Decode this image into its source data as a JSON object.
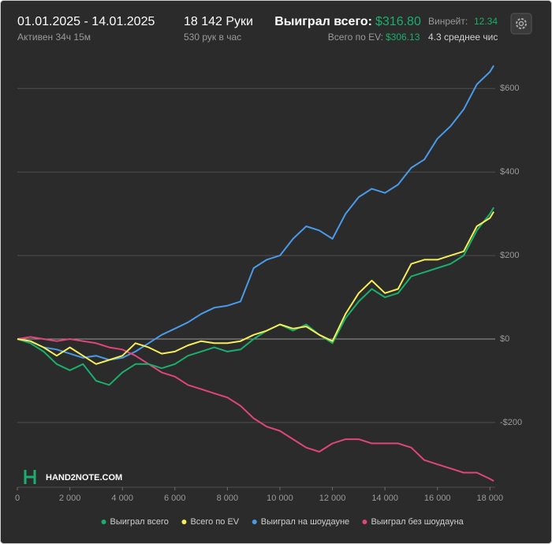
{
  "header": {
    "period": "01.01.2025 - 14.01.2025",
    "active": "Активен 34ч 15м",
    "hands": "18 142 Руки",
    "rate": "530 рук в час",
    "won_label": "Выиграл всего:",
    "won_value": "$316.80",
    "ev_label": "Всего по EV:",
    "ev_value": "$306.13",
    "winrate_label": "Винрейт:",
    "winrate_value": "12.34",
    "avg": "4.3 среднее чис"
  },
  "logo": "HAND2NOTE.COM",
  "chart_data": {
    "type": "line",
    "x": [
      0,
      500,
      1000,
      1500,
      2000,
      2500,
      3000,
      3500,
      4000,
      4500,
      5000,
      5500,
      6000,
      6500,
      7000,
      7500,
      8000,
      8500,
      9000,
      9500,
      10000,
      10500,
      11000,
      11500,
      12000,
      12500,
      13000,
      13500,
      14000,
      14500,
      15000,
      15500,
      16000,
      16500,
      17000,
      17500,
      18000,
      18142
    ],
    "series": [
      {
        "name": "Выиграл всего",
        "color": "#1aaf6c",
        "values": [
          0,
          -10,
          -30,
          -60,
          -75,
          -60,
          -100,
          -110,
          -80,
          -60,
          -60,
          -70,
          -60,
          -40,
          -30,
          -20,
          -30,
          -25,
          0,
          20,
          35,
          20,
          35,
          10,
          -10,
          50,
          90,
          120,
          100,
          110,
          150,
          160,
          170,
          180,
          200,
          260,
          300,
          315
        ]
      },
      {
        "name": "Всего по EV",
        "color": "#f5ee5a",
        "values": [
          0,
          -5,
          -20,
          -40,
          -20,
          -40,
          -60,
          -50,
          -40,
          -10,
          -20,
          -35,
          -30,
          -15,
          -5,
          -10,
          -10,
          -5,
          10,
          20,
          35,
          25,
          30,
          10,
          -5,
          60,
          110,
          140,
          110,
          120,
          180,
          190,
          190,
          200,
          210,
          270,
          290,
          305
        ]
      },
      {
        "name": "Выиграл на шоудауне",
        "color": "#4a9ae8",
        "values": [
          0,
          -5,
          -20,
          -25,
          -35,
          -45,
          -40,
          -50,
          -45,
          -30,
          -10,
          10,
          25,
          40,
          60,
          75,
          80,
          90,
          170,
          190,
          200,
          240,
          270,
          260,
          240,
          300,
          340,
          360,
          350,
          370,
          410,
          430,
          480,
          510,
          550,
          610,
          640,
          655
        ]
      },
      {
        "name": "Выиграл без шоудауна",
        "color": "#e0457b",
        "values": [
          0,
          5,
          0,
          -5,
          0,
          -5,
          -10,
          -20,
          -25,
          -40,
          -60,
          -80,
          -90,
          -110,
          -120,
          -130,
          -140,
          -160,
          -190,
          -210,
          -220,
          -240,
          -260,
          -270,
          -250,
          -240,
          -240,
          -250,
          -250,
          -250,
          -260,
          -290,
          -300,
          -310,
          -320,
          -320,
          -335,
          -340
        ]
      }
    ],
    "xlim": [
      0,
      18200
    ],
    "xticks": [
      0,
      {
        "value": 2000,
        "label": "2 000"
      },
      {
        "value": 4000,
        "label": "4 000"
      },
      {
        "value": 6000,
        "label": "6 000"
      },
      {
        "value": 8000,
        "label": "8 000"
      },
      {
        "value": 10000,
        "label": "10 000"
      },
      {
        "value": 12000,
        "label": "12 000"
      },
      {
        "value": 14000,
        "label": "14 000"
      },
      {
        "value": 16000,
        "label": "16 000"
      },
      {
        "value": 18000,
        "label": "18 000"
      }
    ],
    "ylim": [
      -355,
      695
    ],
    "yticks": [
      {
        "value": -200,
        "label": "-$200"
      },
      {
        "value": 0,
        "label": "$0"
      },
      {
        "value": 200,
        "label": "$200"
      },
      {
        "value": 400,
        "label": "$400"
      },
      {
        "value": 600,
        "label": "$600"
      }
    ],
    "grid": true
  }
}
